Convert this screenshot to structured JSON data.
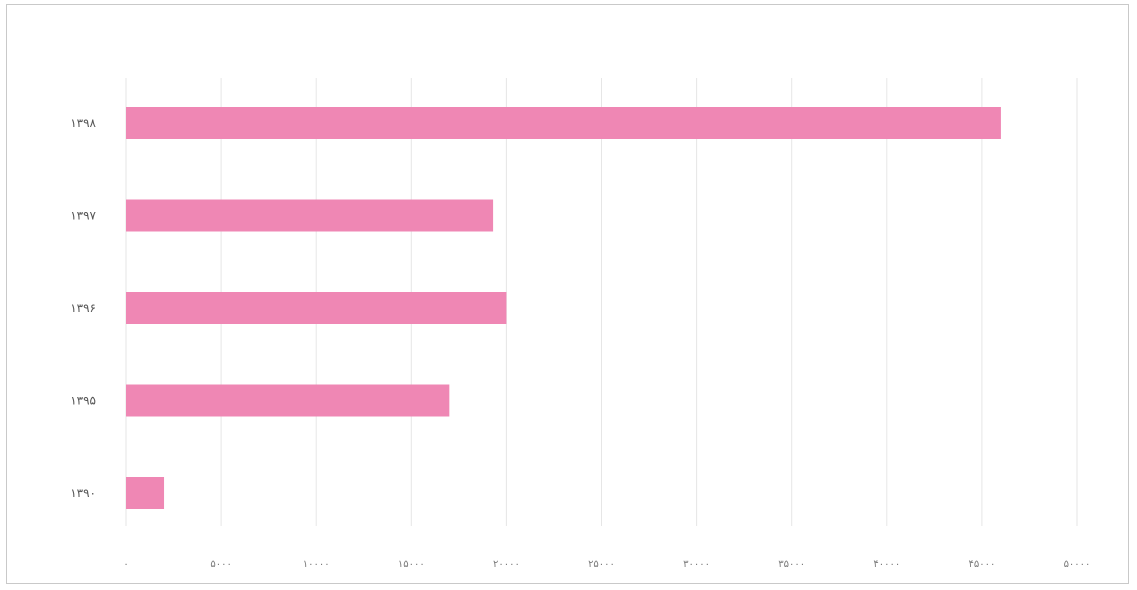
{
  "chart_data": {
    "type": "bar",
    "orientation": "horizontal",
    "categories": [
      "۱۳۹۸",
      "۱۳۹۷",
      "۱۳۹۶",
      "۱۳۹۵",
      "۱۳۹۰"
    ],
    "series": [
      {
        "values": [
          46000,
          19300,
          20000,
          17000,
          2000
        ]
      }
    ],
    "xlim": [
      0,
      50000
    ],
    "x_ticks": [
      0,
      5000,
      10000,
      15000,
      20000,
      25000,
      30000,
      35000,
      40000,
      45000,
      50000
    ],
    "x_tick_labels": [
      "۰",
      "۵۰۰۰",
      "۱۰۰۰۰",
      "۱۵۰۰۰",
      "۲۰۰۰۰",
      "۲۵۰۰۰",
      "۳۰۰۰۰",
      "۳۵۰۰۰",
      "۴۰۰۰۰",
      "۴۵۰۰۰",
      "۵۰۰۰۰"
    ],
    "grid": "vertical",
    "legend": "none",
    "bar_color": "#ef87b4",
    "grid_color": "#e6e6e6"
  }
}
